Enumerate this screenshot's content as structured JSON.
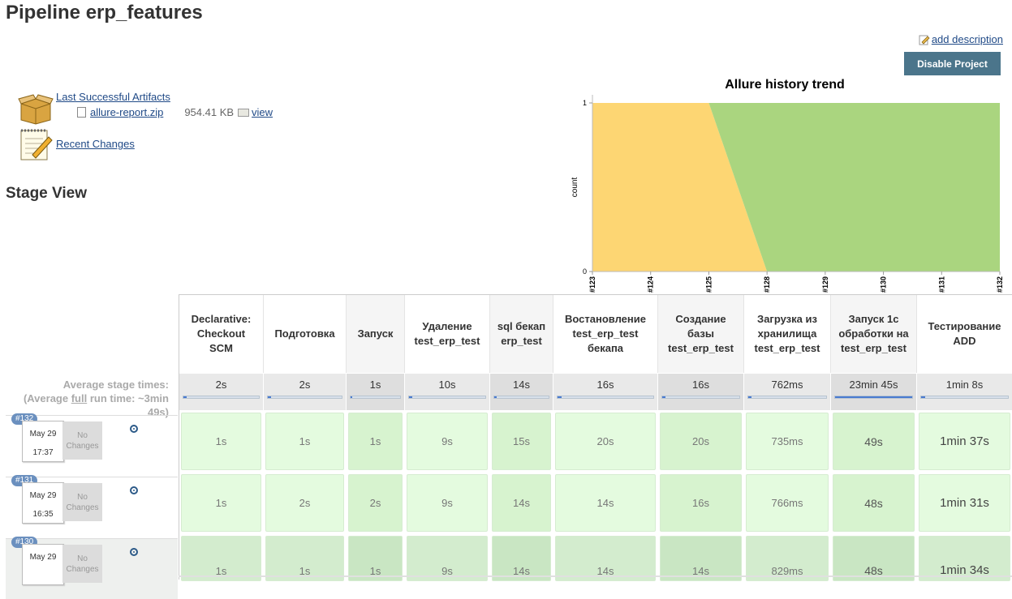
{
  "page": {
    "title": "Pipeline erp_features",
    "add_description": "add description",
    "disable_button": "Disable Project",
    "stage_view_title": "Stage View"
  },
  "artifacts": {
    "title": "Last Successful Artifacts",
    "file_name": "allure-report.zip",
    "file_size": "954.41 KB",
    "view_label": "view"
  },
  "recent_changes": "Recent Changes",
  "allure_trend": {
    "title": "Allure history trend",
    "ylabel": "count",
    "y_ticks": [
      "1",
      "0"
    ],
    "x_labels": [
      "#123",
      "#124",
      "#125",
      "#128",
      "#129",
      "#130",
      "#131",
      "#132"
    ],
    "colors": {
      "failed": "#fdd673",
      "passed": "#aad57f"
    }
  },
  "chart_data": {
    "type": "area",
    "title": "Allure history trend",
    "xlabel": "",
    "ylabel": "count",
    "categories": [
      "#123",
      "#124",
      "#125",
      "#128",
      "#129",
      "#130",
      "#131",
      "#132"
    ],
    "ylim": [
      0,
      1
    ],
    "series": [],
    "_note_series": "stacked: failed (yellow) area then passed (green) area"
  },
  "stage_view": {
    "avg_label_line1": "Average stage times:",
    "avg_label_line2_prefix": "(Average ",
    "avg_label_full": "full",
    "avg_label_line2_suffix": " run time: ~3min",
    "avg_label_line3": "49s)",
    "stages": [
      {
        "name": "Declarative: Checkout SCM",
        "avg": "2s"
      },
      {
        "name": "Подготовка",
        "avg": "2s"
      },
      {
        "name": "Запуск",
        "avg": "1s"
      },
      {
        "name": "Удаление test_erp_test",
        "avg": "10s"
      },
      {
        "name": "sql бекап erp_test",
        "avg": "14s"
      },
      {
        "name": "Востановление test_erp_test бекапа",
        "avg": "16s"
      },
      {
        "name": "Создание базы test_erp_test",
        "avg": "16s"
      },
      {
        "name": "Загрузка из хранилища test_erp_test",
        "avg": "762ms"
      },
      {
        "name": "Запуск 1с обработки на test_erp_test",
        "avg": "23min 45s"
      },
      {
        "name": "Тестирование ADD",
        "avg": "1min 8s"
      }
    ],
    "builds": [
      {
        "number": "#132",
        "date": "May 29",
        "time": "17:37",
        "changes": "No Changes",
        "times": [
          "1s",
          "1s",
          "1s",
          "9s",
          "15s",
          "20s",
          "20s",
          "735ms",
          "49s",
          "1min 37s"
        ]
      },
      {
        "number": "#131",
        "date": "May 29",
        "time": "16:35",
        "changes": "No Changes",
        "times": [
          "1s",
          "2s",
          "2s",
          "9s",
          "14s",
          "14s",
          "16s",
          "766ms",
          "48s",
          "1min 31s"
        ]
      },
      {
        "number": "#130",
        "date": "May 29",
        "time": "",
        "changes": "No Changes",
        "times": [
          "1s",
          "1s",
          "1s",
          "9s",
          "14s",
          "14s",
          "14s",
          "829ms",
          "48s",
          "1min 34s"
        ]
      }
    ]
  }
}
